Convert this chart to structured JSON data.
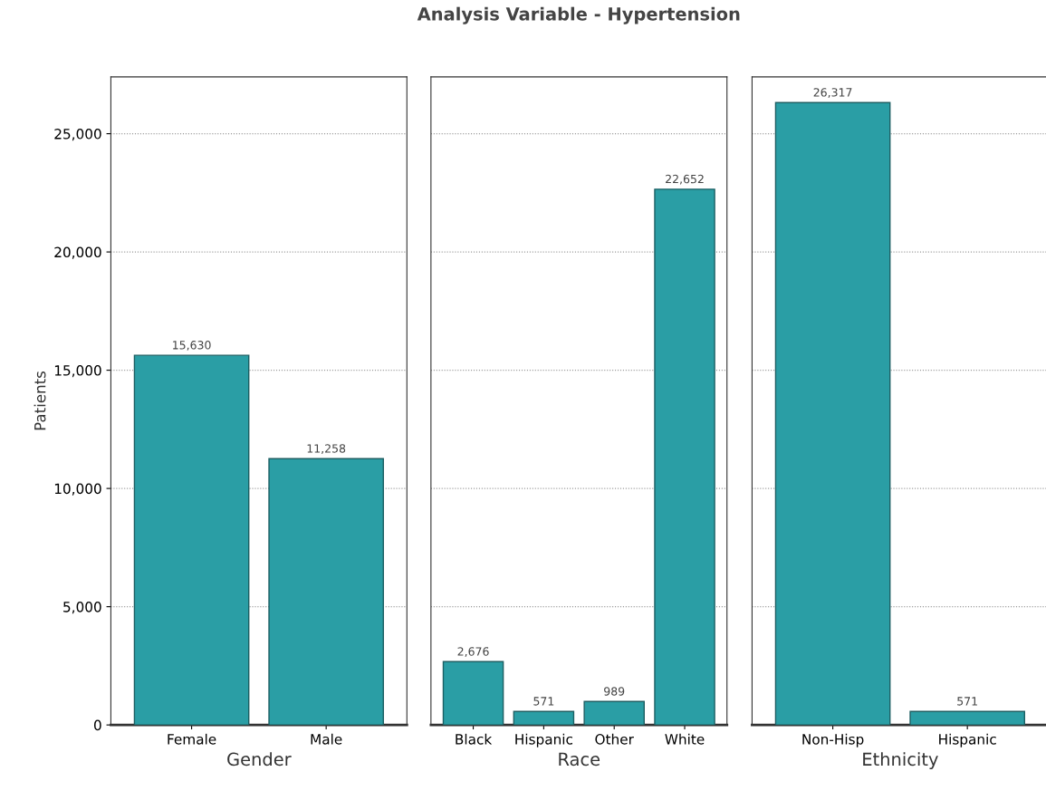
{
  "chart_data": [
    {
      "type": "bar",
      "ylabel": "Patients",
      "xlabel": "Gender",
      "categories": [
        "Female",
        "Male"
      ],
      "values": [
        15630,
        11258
      ],
      "value_labels": [
        "15,630",
        "11,258"
      ],
      "color": "#2a9ea5",
      "ylim": [
        0,
        27400
      ],
      "yticks": [
        {
          "value": 0,
          "label": "0"
        },
        {
          "value": 5000,
          "label": "5,000"
        },
        {
          "value": 10000,
          "label": "10,000"
        },
        {
          "value": 15000,
          "label": "15,000"
        },
        {
          "value": 20000,
          "label": "20,000"
        },
        {
          "value": 25000,
          "label": "25,000"
        }
      ],
      "grid": "y"
    },
    {
      "type": "bar",
      "title": "Analysis Variable - Hypertension",
      "xlabel": "Race",
      "categories": [
        "Black",
        "Hispanic",
        "Other",
        "White"
      ],
      "values": [
        2676,
        571,
        989,
        22652
      ],
      "value_labels": [
        "2,676",
        "571",
        "989",
        "22,652"
      ],
      "color": "#2a9ea5",
      "ylim": [
        0,
        27400
      ],
      "yticks": [
        {
          "value": 0,
          "label": null
        },
        {
          "value": 5000,
          "label": null
        },
        {
          "value": 10000,
          "label": null
        },
        {
          "value": 15000,
          "label": null
        },
        {
          "value": 20000,
          "label": null
        },
        {
          "value": 25000,
          "label": null
        }
      ],
      "grid": "y",
      "tick_labels": "x"
    },
    {
      "type": "bar",
      "xlabel": "Ethnicity",
      "categories": [
        "Non-Hisp",
        "Hispanic"
      ],
      "values": [
        26317,
        571
      ],
      "value_labels": [
        "26,317",
        "571"
      ],
      "color": "#2a9ea5",
      "ylim": [
        0,
        27400
      ],
      "yticks": [
        {
          "value": 0,
          "label": null
        },
        {
          "value": 5000,
          "label": null
        },
        {
          "value": 10000,
          "label": null
        },
        {
          "value": 15000,
          "label": null
        },
        {
          "value": 20000,
          "label": null
        },
        {
          "value": 25000,
          "label": null
        }
      ],
      "grid": "y",
      "tick_labels": "x"
    }
  ]
}
